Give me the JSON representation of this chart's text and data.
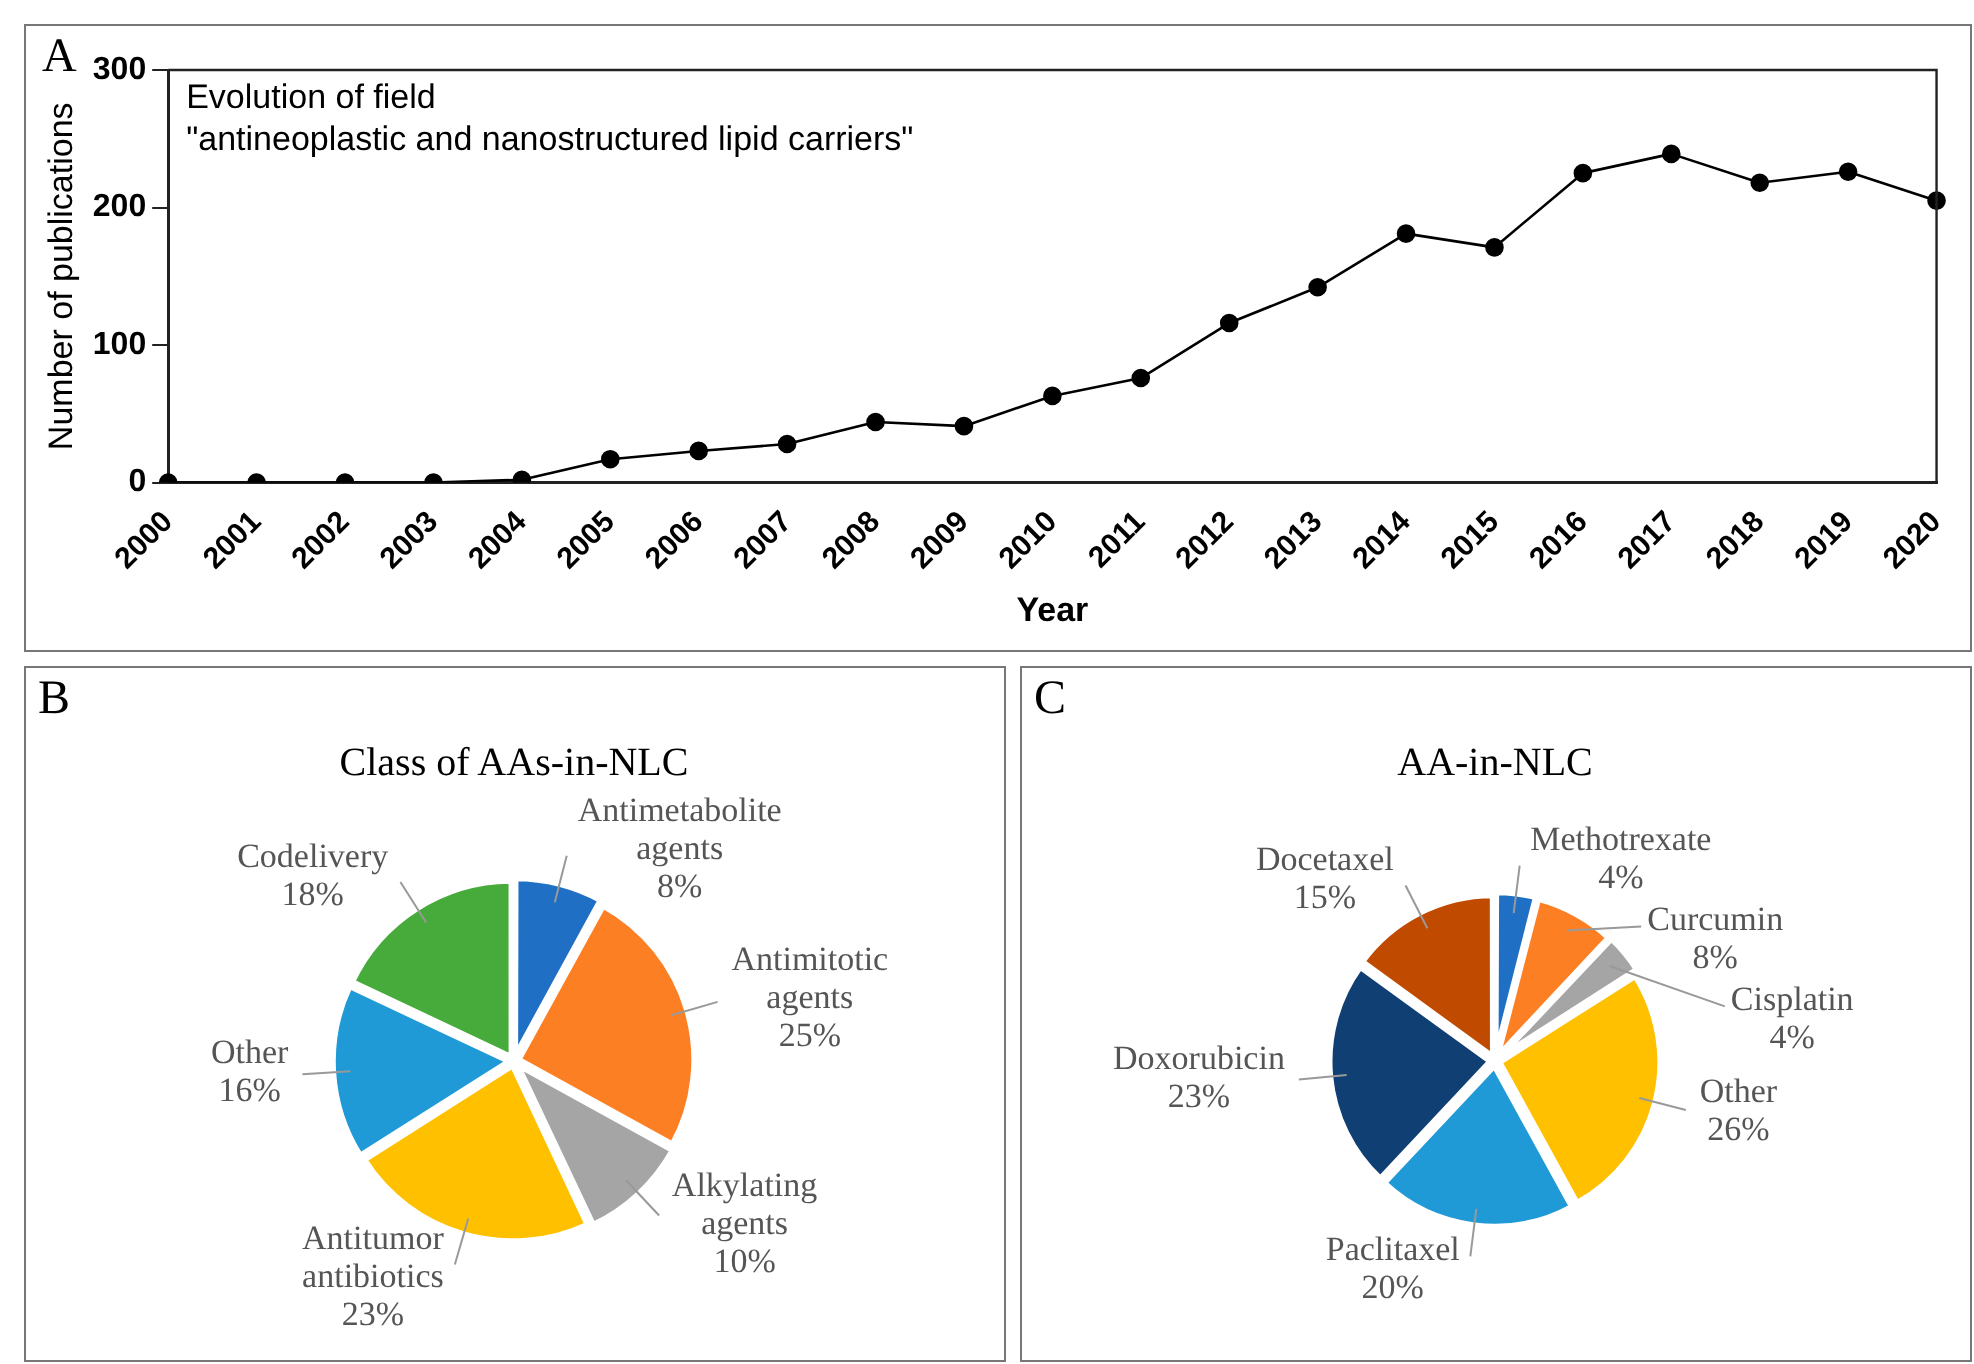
{
  "chart_data": [
    {
      "type": "line",
      "ylabel": "Number of publications",
      "xlabel": "Year",
      "annotations": [
        "A",
        "Evolution of field\n\"antineoplastic and nanostructured lipid carriers\""
      ],
      "categories": [
        "2000",
        "2001",
        "2002",
        "2003",
        "2004",
        "2005",
        "2006",
        "2007",
        "2008",
        "2009",
        "2010",
        "2011",
        "2012",
        "2013",
        "2014",
        "2015",
        "2016",
        "2017",
        "2018",
        "2019",
        "2020"
      ],
      "values": [
        0,
        0,
        0,
        0,
        2,
        17,
        23,
        28,
        44,
        41,
        63,
        76,
        116,
        142,
        181,
        171,
        225,
        239,
        218,
        226,
        205
      ],
      "color": "#000000",
      "ylim": [
        0,
        300
      ],
      "yticks": [
        0,
        100,
        200,
        300
      ],
      "grid": false,
      "legend": false,
      "marker": "circle",
      "line_style": "solid"
    },
    {
      "type": "pie",
      "title": "Class of AAs-in-NLC",
      "annotations": [
        "B"
      ],
      "categories": [
        "Antimetabolite agents",
        "Antimitotic agents",
        "Alkylating agents",
        "Antitumor antibiotics",
        "Other",
        "Codelivery"
      ],
      "values": [
        8,
        25,
        10,
        23,
        16,
        18
      ],
      "colors": [
        "#1f6fc5",
        "#fd7f23",
        "#a5a5a5",
        "#ffc000",
        "#1f9ad6",
        "#46ab3a"
      ],
      "value_labels": [
        "8%",
        "25%",
        "10%",
        "23%",
        "16%",
        "18%"
      ],
      "legend": false
    },
    {
      "type": "pie",
      "title": "AA-in-NLC",
      "annotations": [
        "C"
      ],
      "categories": [
        "Methotrexate",
        "Curcumin",
        "Cisplatin",
        "Other",
        "Paclitaxel",
        "Doxorubicin",
        "Docetaxel"
      ],
      "values": [
        4,
        8,
        4,
        26,
        20,
        23,
        15
      ],
      "colors": [
        "#1f6fc5",
        "#fd7f23",
        "#a5a5a5",
        "#ffc000",
        "#1f9ad6",
        "#0f3f73",
        "#c04a00"
      ],
      "value_labels": [
        "4%",
        "8%",
        "4%",
        "26%",
        "20%",
        "23%",
        "15%"
      ],
      "legend": false
    }
  ]
}
